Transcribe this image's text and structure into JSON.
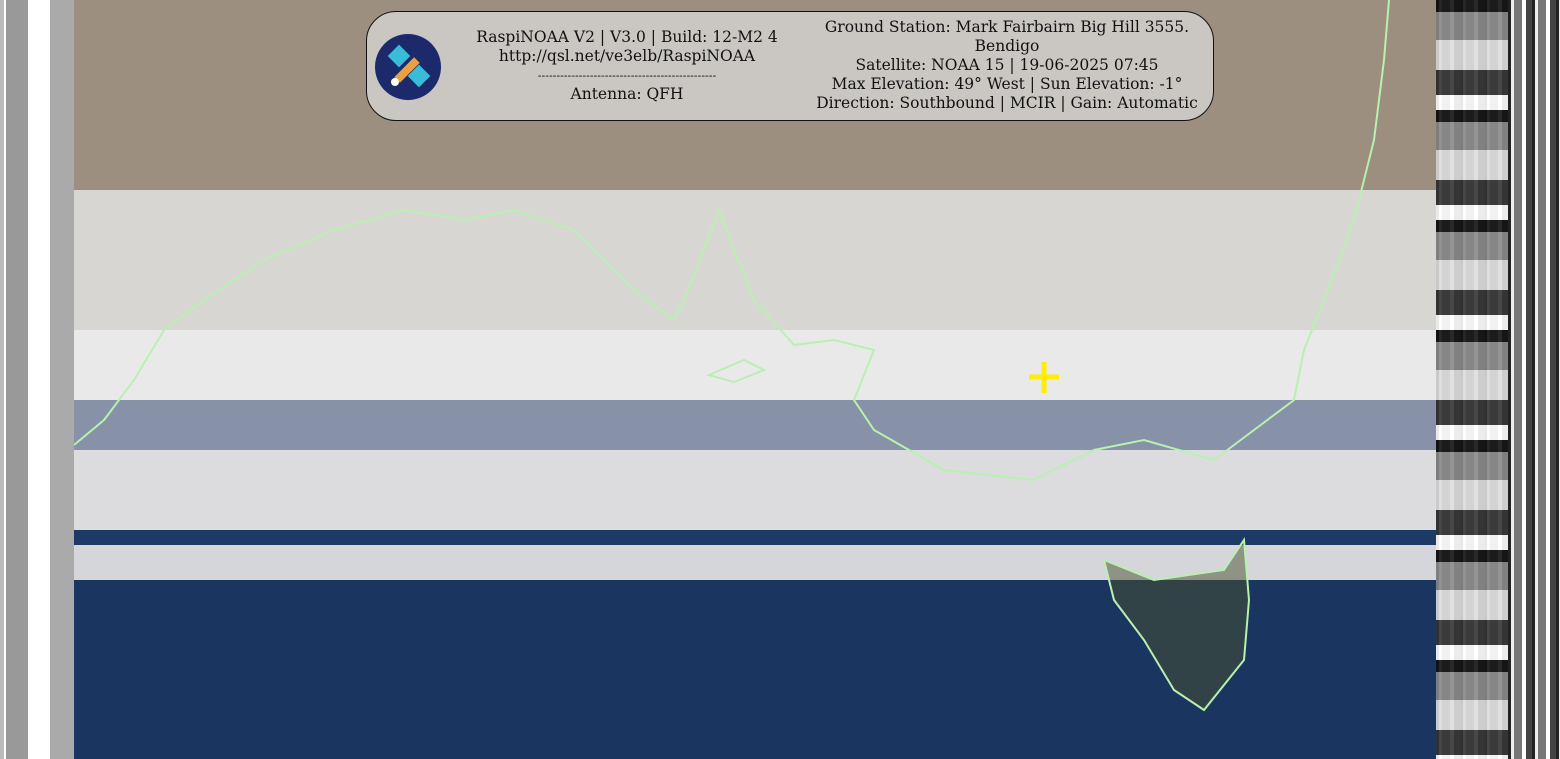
{
  "overlay": {
    "left_lines": [
      "RaspiNOAA V2 | V3.0 | Build: 12-M2 4",
      "http://qsl.net/ve3elb/RaspiNOAA",
      "------------------------------------------------",
      "Antenna: QFH"
    ],
    "right_lines": [
      "Ground Station: Mark Fairbairn Big Hill 3555.",
      "Bendigo",
      "Satellite: NOAA 15 | 19-06-2025 07:45",
      "Max Elevation: 49° West | Sun Elevation: -1°",
      "Direction: Southbound | MCIR | Gain: Automatic"
    ],
    "logo_icon": "satellite-icon"
  },
  "colors": {
    "coastline": "#b8f0b0",
    "marker": "#ffee00",
    "ocean": "#1a3660"
  }
}
